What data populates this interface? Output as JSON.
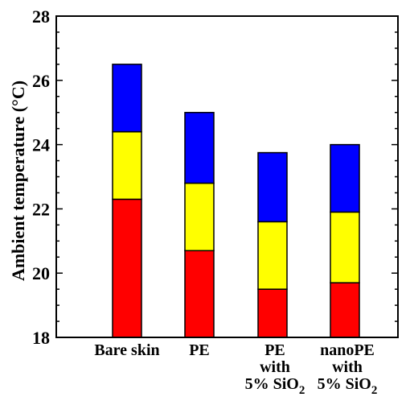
{
  "chart_data": {
    "type": "bar",
    "stacked": true,
    "categories": [
      "Bare skin",
      "PE",
      "PE with 5% SiO2",
      "nanoPE with 5% SiO2"
    ],
    "category_lines": [
      [
        "Bare skin"
      ],
      [
        "PE"
      ],
      [
        "PE",
        "with",
        "5% SiO|2"
      ],
      [
        "nanoPE",
        "with",
        "5% SiO|2"
      ]
    ],
    "segments": [
      {
        "color": "#ff0000",
        "bottoms": [
          18,
          18,
          18,
          18
        ],
        "tops": [
          22.3,
          20.7,
          19.5,
          19.7
        ]
      },
      {
        "color": "#ffff00",
        "bottoms": [
          22.3,
          20.7,
          19.5,
          19.7
        ],
        "tops": [
          24.4,
          22.8,
          21.6,
          21.9
        ]
      },
      {
        "color": "#0000ff",
        "bottoms": [
          24.4,
          22.8,
          21.6,
          21.9
        ],
        "tops": [
          26.5,
          25.0,
          23.75,
          24.0
        ]
      }
    ],
    "ylabel": "Ambient temperature (°C)",
    "ylim": [
      18,
      28
    ],
    "yticks": [
      18,
      20,
      22,
      24,
      26,
      28
    ],
    "ytick_labels": [
      "18",
      "20",
      "22",
      "24",
      "26",
      "28"
    ],
    "grid": false,
    "legend": "none"
  }
}
